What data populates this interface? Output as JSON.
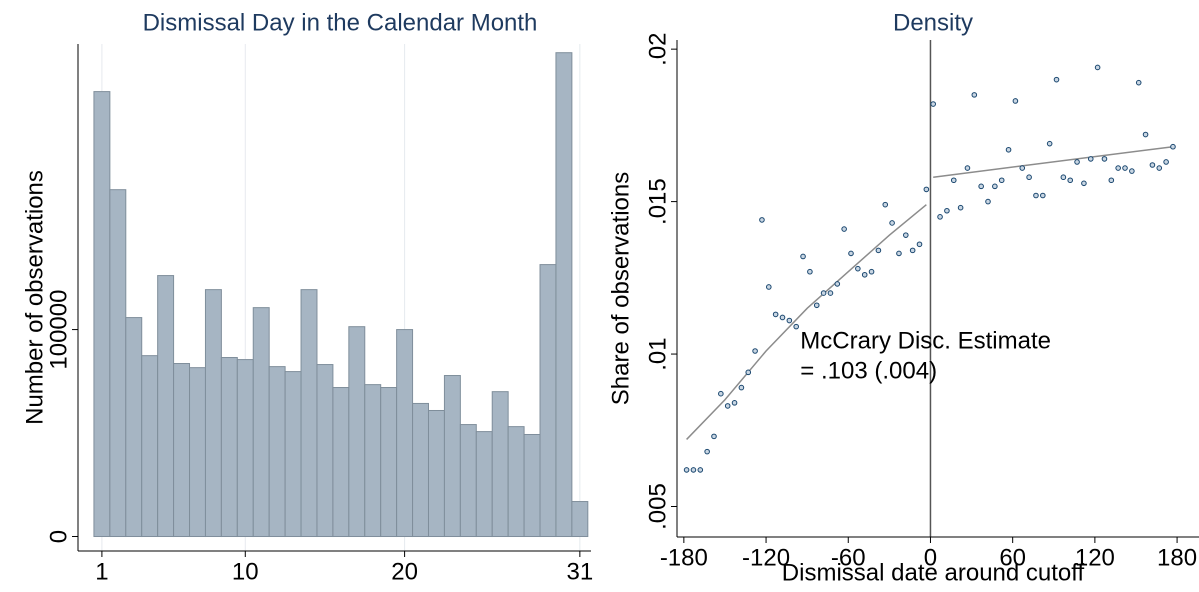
{
  "chart_data": [
    {
      "type": "bar",
      "title": "Dismissal Day in the Calendar Month",
      "y_label": "Number of observations",
      "x": [
        1,
        2,
        3,
        4,
        5,
        6,
        7,
        8,
        9,
        10,
        11,
        12,
        13,
        14,
        15,
        16,
        17,
        18,
        19,
        20,
        21,
        22,
        23,
        24,
        25,
        26,
        27,
        28,
        29,
        30,
        31
      ],
      "values": [
        215000,
        167600,
        105800,
        87400,
        126100,
        83600,
        81600,
        119300,
        86500,
        85500,
        110600,
        82100,
        79700,
        119300,
        83100,
        72000,
        101400,
        73400,
        72000,
        100000,
        64300,
        60900,
        77800,
        54100,
        50700,
        70000,
        53100,
        49300,
        131400,
        233800,
        16900
      ],
      "color": "#a6b5c3",
      "xlim": [
        -0.5,
        31.7
      ],
      "xticks": [
        1,
        10,
        20,
        31
      ],
      "ylim": [
        -7000,
        238000
      ],
      "yticks": [
        0,
        100000
      ],
      "grid": true
    },
    {
      "type": "scatter",
      "title": "Density",
      "y_label": "Share of observations",
      "x_label": "Dismissal date around cutoff",
      "series": [
        {
          "color": "#1a476f",
          "x": [
            -178,
            -173,
            -168,
            -163,
            -158,
            -153,
            -148,
            -143,
            -138,
            -133,
            -128,
            -123,
            -118,
            -113,
            -108,
            -103,
            -98,
            -93,
            -88,
            -83,
            -78,
            -73,
            -68,
            -63,
            -58,
            -53,
            -48,
            -43,
            -38,
            -33,
            -28,
            -23,
            -18,
            -13,
            -8,
            -3
          ],
          "values": [
            0.0062,
            0.0062,
            0.0062,
            0.0068,
            0.0073,
            0.0087,
            0.0083,
            0.0084,
            0.0089,
            0.0094,
            0.0101,
            0.0144,
            0.0122,
            0.0113,
            0.0112,
            0.0111,
            0.0109,
            0.0132,
            0.0127,
            0.0116,
            0.012,
            0.012,
            0.0123,
            0.0141,
            0.0133,
            0.0128,
            0.0126,
            0.0127,
            0.0134,
            0.0149,
            0.0143,
            0.0133,
            0.0139,
            0.0134,
            0.0136,
            0.0154
          ]
        },
        {
          "color": "#1a476f",
          "x": [
            2,
            7,
            12,
            17,
            22,
            27,
            32,
            37,
            42,
            47,
            52,
            57,
            62,
            67,
            72,
            77,
            82,
            87,
            92,
            97,
            102,
            107,
            112,
            117,
            122,
            127,
            132,
            137,
            142,
            147,
            152,
            157,
            162,
            167,
            172,
            177
          ],
          "values": [
            0.0182,
            0.0145,
            0.0147,
            0.0157,
            0.0148,
            0.0161,
            0.0185,
            0.0155,
            0.015,
            0.0155,
            0.0157,
            0.0167,
            0.0183,
            0.0161,
            0.0158,
            0.0152,
            0.0152,
            0.0169,
            0.019,
            0.0158,
            0.0157,
            0.0163,
            0.0156,
            0.0164,
            0.0194,
            0.0164,
            0.0157,
            0.0161,
            0.0161,
            0.016,
            0.0189,
            0.0172,
            0.0162,
            0.0161,
            0.0163,
            0.0168
          ]
        }
      ],
      "fits": [
        {
          "color": "#8c8c8c",
          "x": [
            -178,
            -150,
            -120,
            -90,
            -60,
            -30,
            -3
          ],
          "values": [
            0.0072,
            0.0085,
            0.0101,
            0.0115,
            0.0127,
            0.0139,
            0.0149
          ]
        },
        {
          "color": "#8c8c8c",
          "x": [
            2,
            177
          ],
          "values": [
            0.0158,
            0.0168
          ]
        }
      ],
      "vline": 0,
      "annotation": [
        "McCrary Disc. Estimate",
        "= .103 (.004)"
      ],
      "xlim": [
        -185,
        196
      ],
      "xticks": [
        -180,
        -120,
        -60,
        0,
        60,
        120,
        180
      ],
      "ylim": [
        0.004,
        0.0203
      ],
      "yticks": [
        {
          "value": 0.005,
          "label": ".005"
        },
        {
          "value": 0.01,
          "label": ".01"
        },
        {
          "value": 0.015,
          "label": ".015"
        },
        {
          "value": 0.02,
          "label": ".02"
        }
      ]
    }
  ]
}
